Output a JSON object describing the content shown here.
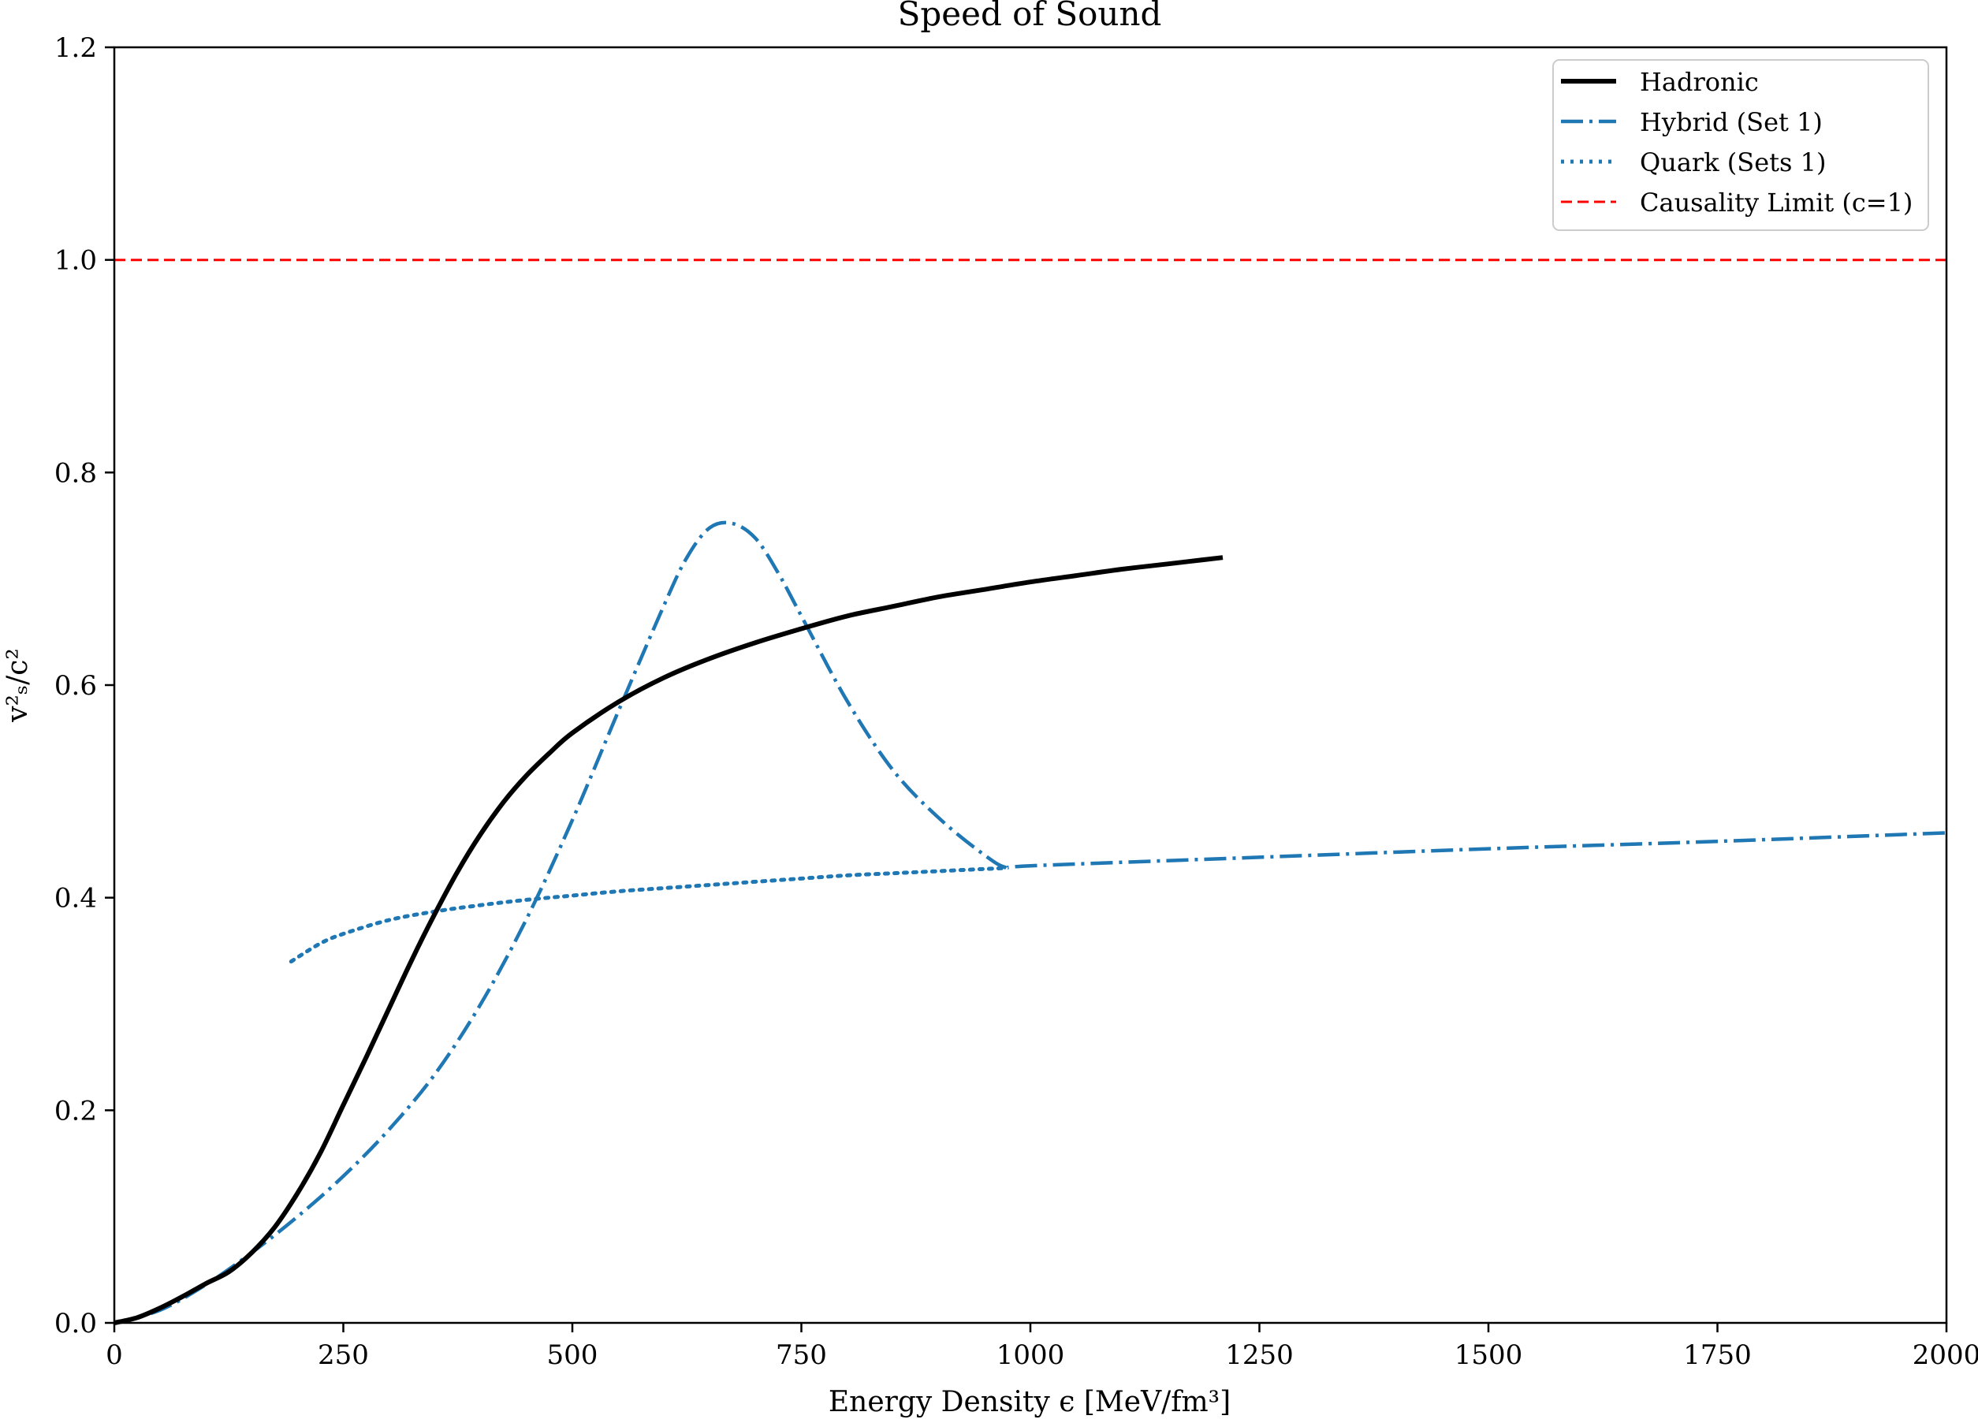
{
  "chart_data": {
    "type": "line",
    "title": "Speed of Sound",
    "xlabel": "Energy Density ϵ [MeV/fm³]",
    "ylabel": "v²ₛ/c²",
    "xlim": [
      0,
      2000
    ],
    "ylim": [
      0,
      1.2
    ],
    "x_ticks": [
      0,
      250,
      500,
      750,
      1000,
      1250,
      1500,
      1750,
      2000
    ],
    "y_ticks": [
      0.0,
      0.2,
      0.4,
      0.6,
      0.8,
      1.0,
      1.2
    ],
    "x_tick_labels": [
      "0",
      "250",
      "500",
      "750",
      "1000",
      "1250",
      "1500",
      "1750",
      "2000"
    ],
    "y_tick_labels": [
      "0.0",
      "0.2",
      "0.4",
      "0.6",
      "0.8",
      "1.0",
      "1.2"
    ],
    "grid": false,
    "legend_position": "top-right",
    "series": [
      {
        "name": "Hadronic",
        "color": "#000000",
        "style": "solid",
        "x": [
          0,
          25,
          50,
          75,
          100,
          125,
          150,
          175,
          200,
          225,
          250,
          275,
          300,
          325,
          350,
          375,
          400,
          425,
          450,
          475,
          500,
          550,
          600,
          650,
          700,
          750,
          800,
          850,
          900,
          950,
          1000,
          1050,
          1100,
          1150,
          1210
        ],
        "y": [
          0.0,
          0.005,
          0.014,
          0.025,
          0.037,
          0.048,
          0.066,
          0.09,
          0.122,
          0.16,
          0.205,
          0.25,
          0.296,
          0.342,
          0.385,
          0.425,
          0.46,
          0.49,
          0.515,
          0.536,
          0.555,
          0.584,
          0.607,
          0.625,
          0.64,
          0.653,
          0.665,
          0.674,
          0.683,
          0.69,
          0.697,
          0.703,
          0.709,
          0.714,
          0.72
        ]
      },
      {
        "name": "Hybrid (Set 1)",
        "color": "#1f77b4",
        "style": "dashdot",
        "x": [
          0,
          50,
          100,
          150,
          200,
          250,
          300,
          350,
          400,
          450,
          500,
          550,
          600,
          625,
          650,
          675,
          700,
          725,
          750,
          800,
          850,
          900,
          950,
          975,
          1000,
          1250,
          1500,
          1750,
          2000
        ],
        "y": [
          0.0,
          0.012,
          0.036,
          0.066,
          0.1,
          0.138,
          0.182,
          0.234,
          0.3,
          0.38,
          0.473,
          0.575,
          0.675,
          0.72,
          0.748,
          0.752,
          0.738,
          0.705,
          0.665,
          0.585,
          0.52,
          0.475,
          0.44,
          0.428,
          0.43,
          0.438,
          0.446,
          0.453,
          0.461
        ]
      },
      {
        "name": "Quark (Sets 1)",
        "color": "#1f77b4",
        "style": "dotted",
        "x": [
          193,
          225,
          250,
          300,
          350,
          400,
          450,
          500,
          550,
          600,
          650,
          700,
          750,
          800,
          850,
          900,
          975
        ],
        "y": [
          0.34,
          0.357,
          0.366,
          0.379,
          0.387,
          0.393,
          0.398,
          0.402,
          0.406,
          0.409,
          0.412,
          0.415,
          0.418,
          0.421,
          0.423,
          0.425,
          0.428
        ]
      },
      {
        "name": "Causality Limit (c=1)",
        "color": "#ff0000",
        "style": "dashed",
        "x": [
          0,
          2000
        ],
        "y": [
          1.0,
          1.0
        ]
      }
    ]
  }
}
